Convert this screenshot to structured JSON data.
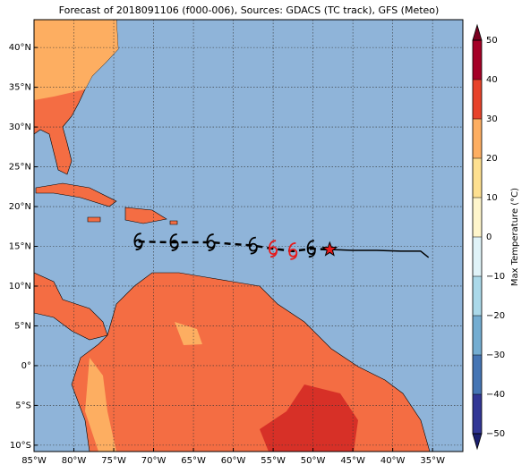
{
  "chart_data": {
    "type": "map",
    "title": "Forecast of 2018091106 (f000-006), Sources: GDACS (TC track), GFS (Meteo)",
    "xlim": [
      -85,
      -31.2
    ],
    "ylim": [
      -10.8,
      43.5
    ],
    "xticks": [
      {
        "value": -85,
        "label": "85°W"
      },
      {
        "value": -80,
        "label": "80°W"
      },
      {
        "value": -75,
        "label": "75°W"
      },
      {
        "value": -70,
        "label": "70°W"
      },
      {
        "value": -65,
        "label": "65°W"
      },
      {
        "value": -60,
        "label": "60°W"
      },
      {
        "value": -55,
        "label": "55°W"
      },
      {
        "value": -50,
        "label": "50°W"
      },
      {
        "value": -45,
        "label": "45°W"
      },
      {
        "value": -40,
        "label": "40°W"
      },
      {
        "value": -35,
        "label": "35°W"
      }
    ],
    "yticks": [
      {
        "value": -10,
        "label": "10°S"
      },
      {
        "value": -5,
        "label": "5°S"
      },
      {
        "value": 0,
        "label": "0°"
      },
      {
        "value": 5,
        "label": "5°N"
      },
      {
        "value": 10,
        "label": "10°N"
      },
      {
        "value": 15,
        "label": "15°N"
      },
      {
        "value": 20,
        "label": "20°N"
      },
      {
        "value": 25,
        "label": "25°N"
      },
      {
        "value": 30,
        "label": "30°N"
      },
      {
        "value": 35,
        "label": "35°N"
      },
      {
        "value": 40,
        "label": "40°N"
      }
    ],
    "grid": true,
    "ocean_color": "#8fb4d9",
    "colorbar": {
      "label": "Max Temperature (°C)",
      "lim": [
        -50,
        50
      ],
      "ticks": [
        {
          "value": -50,
          "label": "−50"
        },
        {
          "value": -40,
          "label": "−40"
        },
        {
          "value": -30,
          "label": "−30"
        },
        {
          "value": -20,
          "label": "−20"
        },
        {
          "value": -10,
          "label": "−10"
        },
        0,
        10,
        20,
        30,
        40,
        50
      ],
      "colors": [
        "#313695",
        "#4575b4",
        "#74add1",
        "#abd9e9",
        "#e0f3f8",
        "#fff6cc",
        "#fee090",
        "#fdae61",
        "#e7432a",
        "#a50026"
      ],
      "under_color": "#1a1f6e",
      "over_color": "#7a0020"
    },
    "track": {
      "forecast": {
        "lon": [
          -71.9,
          -67.4,
          -62.8,
          -57.5,
          -55.0,
          -52.5,
          -50.2
        ],
        "lat": [
          15.6,
          15.5,
          15.5,
          15.1,
          14.7,
          14.4,
          14.7
        ],
        "colors": [
          "#000000",
          "#000000",
          "#000000",
          "#000000",
          "#e8191a",
          "#e8191a",
          "#000000"
        ]
      },
      "observed": {
        "lon": [
          -47.9,
          -45,
          -42,
          -39,
          -36.5,
          -35.5
        ],
        "lat": [
          14.6,
          14.5,
          14.5,
          14.4,
          14.4,
          13.6
        ]
      },
      "current": {
        "lon": -47.9,
        "lat": 14.6,
        "color": "#e8191a"
      }
    }
  }
}
